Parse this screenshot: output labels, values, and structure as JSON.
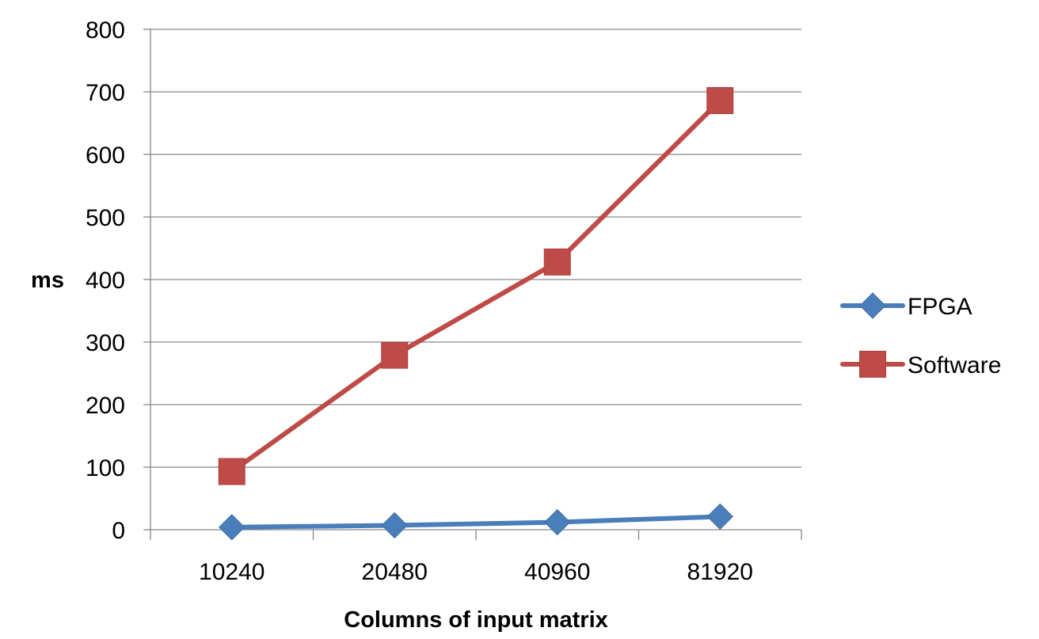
{
  "chart_data": {
    "type": "line",
    "title": "",
    "xlabel": "Columns of input matrix",
    "ylabel": "ms",
    "categories": [
      "10240",
      "20480",
      "40960",
      "81920"
    ],
    "ylim": [
      0,
      800
    ],
    "yticks": [
      0,
      100,
      200,
      300,
      400,
      500,
      600,
      700,
      800
    ],
    "grid": "horizontal",
    "legend_position": "right",
    "series": [
      {
        "name": "FPGA",
        "values": [
          4,
          7,
          12,
          21
        ],
        "color": "#4a7ebb",
        "marker": "diamond"
      },
      {
        "name": "Software",
        "values": [
          93,
          279,
          428,
          686
        ],
        "color": "#be4b48",
        "marker": "square"
      }
    ]
  }
}
